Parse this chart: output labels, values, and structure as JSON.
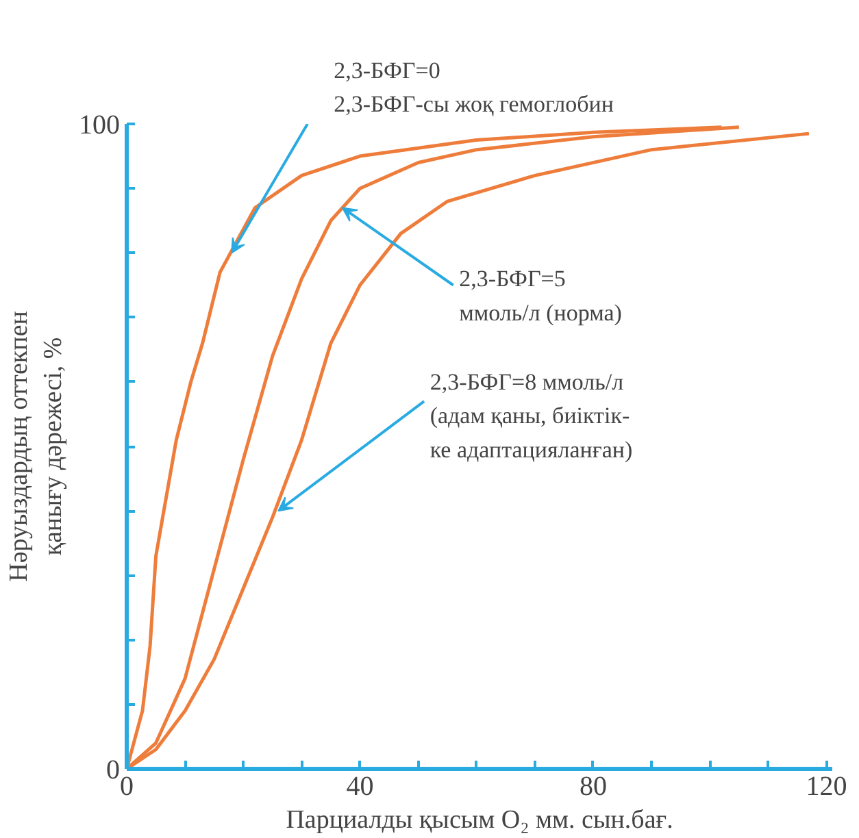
{
  "chart_data": {
    "type": "line",
    "xlabel": "Парциалды қысым O₂ мм. сын.бағ.",
    "ylabel": "Нәруыздардың оттекпен\nқанығу дәрежесі, %",
    "xlim": [
      0,
      121
    ],
    "ylim": [
      0,
      100
    ],
    "xticks": [
      0,
      {
        "value": 10,
        "label": null
      },
      {
        "value": 20,
        "label": null
      },
      {
        "value": 30,
        "label": null
      },
      40,
      {
        "value": 50,
        "label": null
      },
      {
        "value": 60,
        "label": null
      },
      {
        "value": 70,
        "label": null
      },
      80,
      {
        "value": 90,
        "label": null
      },
      {
        "value": 100,
        "label": null
      },
      {
        "value": 110,
        "label": null
      },
      120
    ],
    "yticks": [
      0,
      {
        "value": 10,
        "label": null
      },
      {
        "value": 20,
        "label": null
      },
      {
        "value": 30,
        "label": null
      },
      {
        "value": 40,
        "label": null
      },
      {
        "value": 50,
        "label": null
      },
      {
        "value": 60,
        "label": null
      },
      {
        "value": 70,
        "label": null
      },
      {
        "value": 80,
        "label": null
      },
      {
        "value": 90,
        "label": null
      },
      100
    ],
    "grid": false,
    "marker": "none",
    "line_style": "solid",
    "series": [
      {
        "color": "#ee7d3b",
        "x": [
          0,
          2.7,
          4,
          5,
          8.5,
          11,
          13,
          16,
          22,
          30,
          40,
          60,
          80,
          102
        ],
        "values": [
          0,
          9,
          19,
          33,
          51,
          60,
          66,
          77,
          87,
          92,
          95,
          97.5,
          98.7,
          99.5
        ]
      },
      {
        "color": "#ee7d3b",
        "x": [
          0,
          5,
          10,
          15,
          20,
          25,
          30,
          35,
          40,
          50,
          60,
          80,
          105
        ],
        "values": [
          0,
          4,
          14,
          31,
          48,
          64,
          76,
          85,
          90,
          94,
          96,
          98,
          99.5
        ]
      },
      {
        "color": "#ee7d3b",
        "x": [
          0,
          5,
          10,
          15,
          20,
          25,
          30,
          35,
          40,
          47,
          55,
          70,
          90,
          117
        ],
        "values": [
          0,
          3,
          9,
          17,
          28,
          39,
          51,
          66,
          75,
          83,
          88,
          92,
          96,
          98.5
        ]
      }
    ],
    "annotations": [
      {
        "text": "2,3-БФГ=0\n2,3-БФГ-сы  жоқ  гемоглобин",
        "x": 18,
        "y": 80
      },
      {
        "text": "2,3-БФГ=5\nммоль/л  (норма)",
        "x": 37,
        "y": 87
      },
      {
        "text": "2,3-БФГ=8  ммоль/л\n(адам қаны, биіктік-\nке адаптацияланған)",
        "x": 26,
        "y": 40
      }
    ]
  }
}
